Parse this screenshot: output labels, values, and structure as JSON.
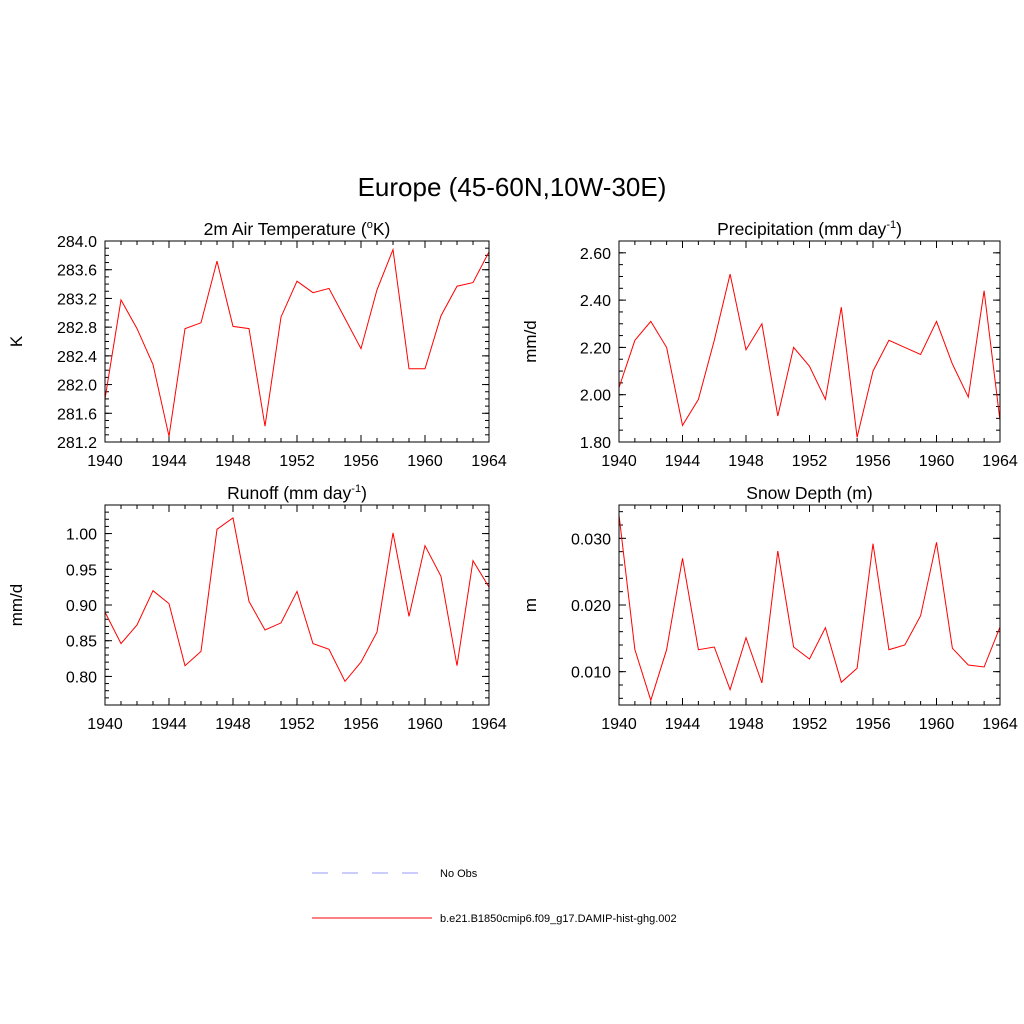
{
  "figure": {
    "title": "Europe (45-60N,10W-30E)"
  },
  "legend": {
    "items": [
      {
        "label": "No Obs",
        "color": "#9999ff",
        "style": "dashed"
      },
      {
        "label": "b.e21.B1850cmip6.f09_g17.DAMIP-hist-ghg.002",
        "color": "#ff0000",
        "style": "solid"
      }
    ]
  },
  "chart_data": [
    {
      "type": "line",
      "title": "2m Air Temperature (",
      "title_sup": "o",
      "title_end": "K)",
      "ylabel": "K",
      "xlim": [
        1940,
        1964
      ],
      "ylim": [
        281.2,
        284.0
      ],
      "xticks": [
        1940,
        1944,
        1948,
        1952,
        1956,
        1960,
        1964
      ],
      "xtick_labels": [
        "1940",
        "1944",
        "1948",
        "1952",
        "1956",
        "1960",
        "1964"
      ],
      "yticks": [
        281.2,
        281.6,
        282.0,
        282.4,
        282.8,
        283.2,
        283.6,
        284.0
      ],
      "ytick_labels": [
        "281.2",
        "281.6",
        "282.0",
        "282.4",
        "282.8",
        "283.2",
        "283.6",
        "284.0"
      ],
      "yminor": 0.1,
      "series": [
        {
          "color": "#ff0000",
          "x": [
            1940,
            1941,
            1942,
            1943,
            1944,
            1945,
            1946,
            1947,
            1948,
            1949,
            1950,
            1951,
            1952,
            1953,
            1954,
            1955,
            1956,
            1957,
            1958,
            1959,
            1960,
            1961,
            1962,
            1963,
            1964
          ],
          "values": [
            281.8,
            283.18,
            282.78,
            282.28,
            281.28,
            282.78,
            282.86,
            283.72,
            282.81,
            282.78,
            281.42,
            282.94,
            283.44,
            283.28,
            283.34,
            282.92,
            282.5,
            283.32,
            283.88,
            282.22,
            282.22,
            282.96,
            283.37,
            283.42,
            283.85
          ]
        }
      ]
    },
    {
      "type": "line",
      "title": "Precipitation (mm day",
      "title_sup": "-1",
      "title_end": ")",
      "ylabel": "mm/d",
      "xlim": [
        1940,
        1964
      ],
      "ylim": [
        1.8,
        2.65
      ],
      "xticks": [
        1940,
        1944,
        1948,
        1952,
        1956,
        1960,
        1964
      ],
      "xtick_labels": [
        "1940",
        "1944",
        "1948",
        "1952",
        "1956",
        "1960",
        "1964"
      ],
      "yticks": [
        1.8,
        2.0,
        2.2,
        2.4,
        2.6
      ],
      "ytick_labels": [
        "1.80",
        "2.00",
        "2.20",
        "2.40",
        "2.60"
      ],
      "yminor": 0.05,
      "series": [
        {
          "color": "#ff0000",
          "x": [
            1940,
            1941,
            1942,
            1943,
            1944,
            1945,
            1946,
            1947,
            1948,
            1949,
            1950,
            1951,
            1952,
            1953,
            1954,
            1955,
            1956,
            1957,
            1958,
            1959,
            1960,
            1961,
            1962,
            1963,
            1964
          ],
          "values": [
            2.03,
            2.23,
            2.31,
            2.2,
            1.87,
            1.98,
            2.23,
            2.51,
            2.19,
            2.3,
            1.91,
            2.2,
            2.12,
            1.98,
            2.37,
            1.82,
            2.1,
            2.23,
            2.2,
            2.17,
            2.31,
            2.13,
            1.99,
            2.44,
            1.89
          ]
        }
      ]
    },
    {
      "type": "line",
      "title": "Runoff (mm day",
      "title_sup": "-1",
      "title_end": ")",
      "ylabel": "mm/d",
      "xlim": [
        1940,
        1964
      ],
      "ylim": [
        0.76,
        1.04
      ],
      "xticks": [
        1940,
        1944,
        1948,
        1952,
        1956,
        1960,
        1964
      ],
      "xtick_labels": [
        "1940",
        "1944",
        "1948",
        "1952",
        "1956",
        "1960",
        "1964"
      ],
      "yticks": [
        0.8,
        0.85,
        0.9,
        0.95,
        1.0
      ],
      "ytick_labels": [
        "0.80",
        "0.85",
        "0.90",
        "0.95",
        "1.00"
      ],
      "yminor": 0.01,
      "series": [
        {
          "color": "#ff0000",
          "x": [
            1940,
            1941,
            1942,
            1943,
            1944,
            1945,
            1946,
            1947,
            1948,
            1949,
            1950,
            1951,
            1952,
            1953,
            1954,
            1955,
            1956,
            1957,
            1958,
            1959,
            1960,
            1961,
            1962,
            1963,
            1964
          ],
          "values": [
            0.89,
            0.846,
            0.872,
            0.92,
            0.902,
            0.815,
            0.835,
            1.006,
            1.022,
            0.905,
            0.865,
            0.875,
            0.919,
            0.846,
            0.838,
            0.793,
            0.82,
            0.862,
            1.001,
            0.884,
            0.983,
            0.94,
            0.815,
            0.962,
            0.925
          ]
        }
      ]
    },
    {
      "type": "line",
      "title": "Snow Depth (m)",
      "title_sup": "",
      "title_end": "",
      "ylabel": "m",
      "xlim": [
        1940,
        1964
      ],
      "ylim": [
        0.005,
        0.035
      ],
      "xticks": [
        1940,
        1944,
        1948,
        1952,
        1956,
        1960,
        1964
      ],
      "xtick_labels": [
        "1940",
        "1944",
        "1948",
        "1952",
        "1956",
        "1960",
        "1964"
      ],
      "yticks": [
        0.01,
        0.02,
        0.03
      ],
      "ytick_labels": [
        "0.010",
        "0.020",
        "0.030"
      ],
      "yminor": 0.002,
      "series": [
        {
          "color": "#ff0000",
          "x": [
            1940,
            1941,
            1942,
            1943,
            1944,
            1945,
            1946,
            1947,
            1948,
            1949,
            1950,
            1951,
            1952,
            1953,
            1954,
            1955,
            1956,
            1957,
            1958,
            1959,
            1960,
            1961,
            1962,
            1963,
            1964
          ],
          "values": [
            0.0335,
            0.0133,
            0.0057,
            0.0133,
            0.027,
            0.0133,
            0.0137,
            0.0073,
            0.0151,
            0.0083,
            0.0281,
            0.0137,
            0.0119,
            0.0166,
            0.0084,
            0.0105,
            0.0292,
            0.0133,
            0.014,
            0.0184,
            0.0294,
            0.0135,
            0.011,
            0.0107,
            0.0167
          ]
        }
      ]
    }
  ]
}
